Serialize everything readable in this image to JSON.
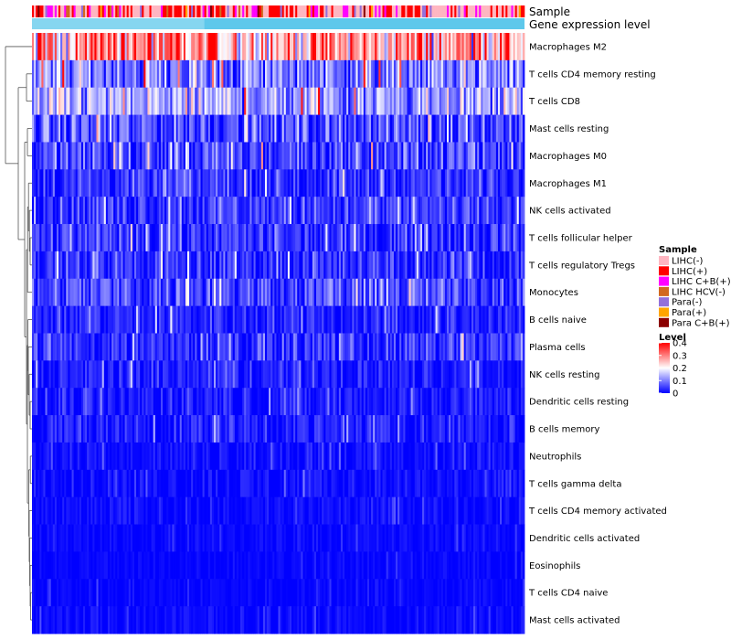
{
  "chart_data": {
    "type": "heatmap",
    "annotation_tracks": [
      "Sample",
      "Gene expression level"
    ],
    "rows": [
      {
        "label": "Macrophages M2",
        "mean": 0.27,
        "spread": 0.12
      },
      {
        "label": "T cells CD4 memory resting",
        "mean": 0.1,
        "spread": 0.08
      },
      {
        "label": "T cells CD8",
        "mean": 0.13,
        "spread": 0.09
      },
      {
        "label": "Mast cells resting",
        "mean": 0.06,
        "spread": 0.07
      },
      {
        "label": "Macrophages M0",
        "mean": 0.05,
        "spread": 0.07
      },
      {
        "label": "Macrophages M1",
        "mean": 0.04,
        "spread": 0.05
      },
      {
        "label": "NK cells activated",
        "mean": 0.045,
        "spread": 0.05
      },
      {
        "label": "T cells follicular helper",
        "mean": 0.04,
        "spread": 0.05
      },
      {
        "label": "T cells regulatory  Tregs",
        "mean": 0.035,
        "spread": 0.05
      },
      {
        "label": "Monocytes",
        "mean": 0.06,
        "spread": 0.06
      },
      {
        "label": "B cells naive",
        "mean": 0.03,
        "spread": 0.04
      },
      {
        "label": "Plasma cells",
        "mean": 0.035,
        "spread": 0.05
      },
      {
        "label": "NK cells resting",
        "mean": 0.02,
        "spread": 0.035
      },
      {
        "label": "Dendritic cells resting",
        "mean": 0.02,
        "spread": 0.035
      },
      {
        "label": "B cells memory",
        "mean": 0.02,
        "spread": 0.04
      },
      {
        "label": "Neutrophils",
        "mean": 0.01,
        "spread": 0.025
      },
      {
        "label": "T cells gamma delta",
        "mean": 0.01,
        "spread": 0.025
      },
      {
        "label": "T cells CD4 memory activated",
        "mean": 0.008,
        "spread": 0.02
      },
      {
        "label": "Dendritic cells activated",
        "mean": 0.006,
        "spread": 0.015
      },
      {
        "label": "Eosinophils",
        "mean": 0.004,
        "spread": 0.012
      },
      {
        "label": "T cells CD4 naive",
        "mean": 0.004,
        "spread": 0.012
      },
      {
        "label": "Mast cells activated",
        "mean": 0.006,
        "spread": 0.018
      }
    ],
    "n_samples": 260,
    "legend": {
      "sample_title": "Sample",
      "sample_items": [
        {
          "label": "LIHC(-)",
          "color": "#ffb6c1"
        },
        {
          "label": "LIHC(+)",
          "color": "#ff0000"
        },
        {
          "label": "LIHC C+B(+)",
          "color": "#ff00ff"
        },
        {
          "label": "LIHC HCV(-)",
          "color": "#d2691e"
        },
        {
          "label": "Para(-)",
          "color": "#9370db"
        },
        {
          "label": "Para(+)",
          "color": "#ffa500"
        },
        {
          "label": "Para C+B(+)",
          "color": "#8b0000"
        }
      ],
      "level_title": "Level",
      "level_ticks": [
        0.4,
        0.3,
        0.2,
        0.1,
        0
      ],
      "level_tick_labels": [
        "0.4",
        "0.3",
        "0.2",
        "0.1",
        "0"
      ],
      "level_range": [
        0,
        0.4
      ]
    },
    "gene_expression_color": "#5ec8eb",
    "colormap": [
      "#0000ff",
      "#ffffff",
      "#ff0000"
    ]
  }
}
